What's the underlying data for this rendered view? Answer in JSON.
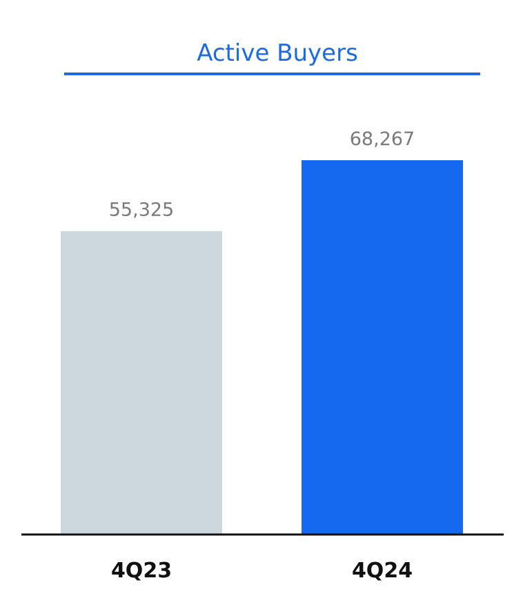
{
  "chart_data": {
    "type": "bar",
    "title": "Active Buyers",
    "categories": [
      "4Q23",
      "4Q24"
    ],
    "values": [
      55325,
      68267
    ],
    "value_labels": [
      "55,325",
      "68,267"
    ],
    "bar_colors": [
      "#cdd8de",
      "#1469ee"
    ],
    "title_color": "#1a6be0",
    "title_underline_color": "#1a6be0",
    "value_label_color": "#7a7a7a",
    "category_label_color": "#111111",
    "baseline_color": "#111111",
    "ylim": [
      0,
      68267
    ],
    "grid": false,
    "legend": "none"
  }
}
